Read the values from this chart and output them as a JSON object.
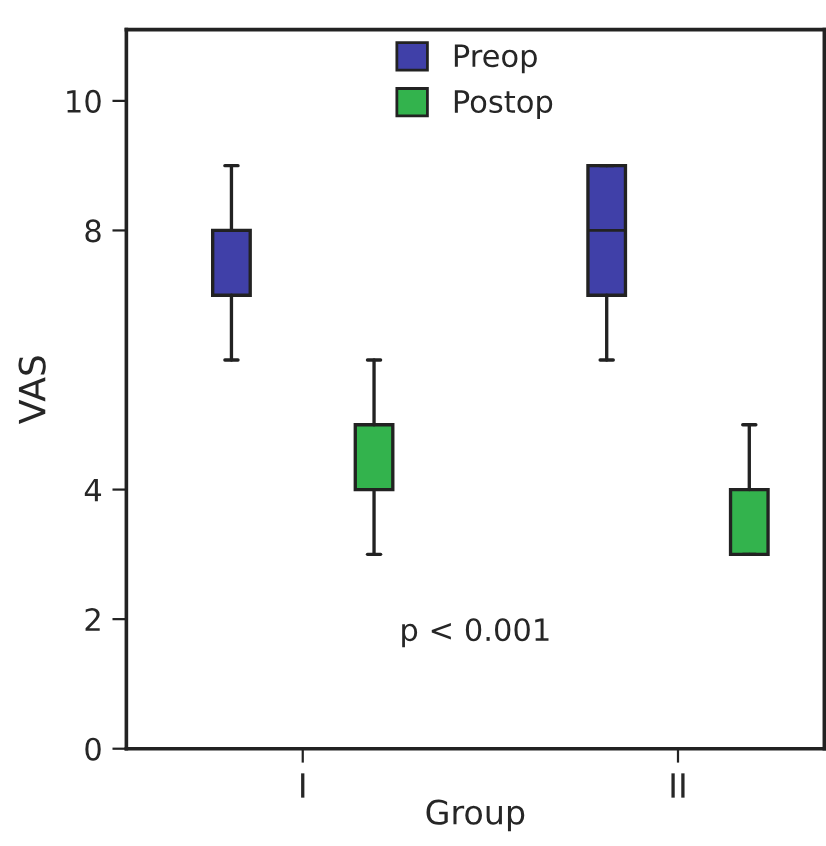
{
  "chart_data": {
    "type": "box",
    "xlabel": "Group",
    "ylabel": "VAS",
    "categories": [
      "I",
      "II"
    ],
    "series": [
      {
        "name": "Preop",
        "color": "#4040a8",
        "boxes": [
          {
            "low": 6,
            "q1": 7,
            "median": 8,
            "q3": 8,
            "high": 9
          },
          {
            "low": 6,
            "q1": 7,
            "median": 8,
            "q3": 9,
            "high": 9
          }
        ]
      },
      {
        "name": "Postop",
        "color": "#33b34d",
        "boxes": [
          {
            "low": 3,
            "q1": 4,
            "median": 4,
            "q3": 5,
            "high": 6
          },
          {
            "low": 3,
            "q1": 3,
            "median": 3,
            "q3": 4,
            "high": 5
          }
        ]
      }
    ],
    "ylim": [
      0,
      11.1
    ],
    "yticks": [
      0,
      2,
      4,
      8,
      10
    ],
    "annotations": [
      "p < 0.001"
    ],
    "legend": "top",
    "grid": false
  }
}
